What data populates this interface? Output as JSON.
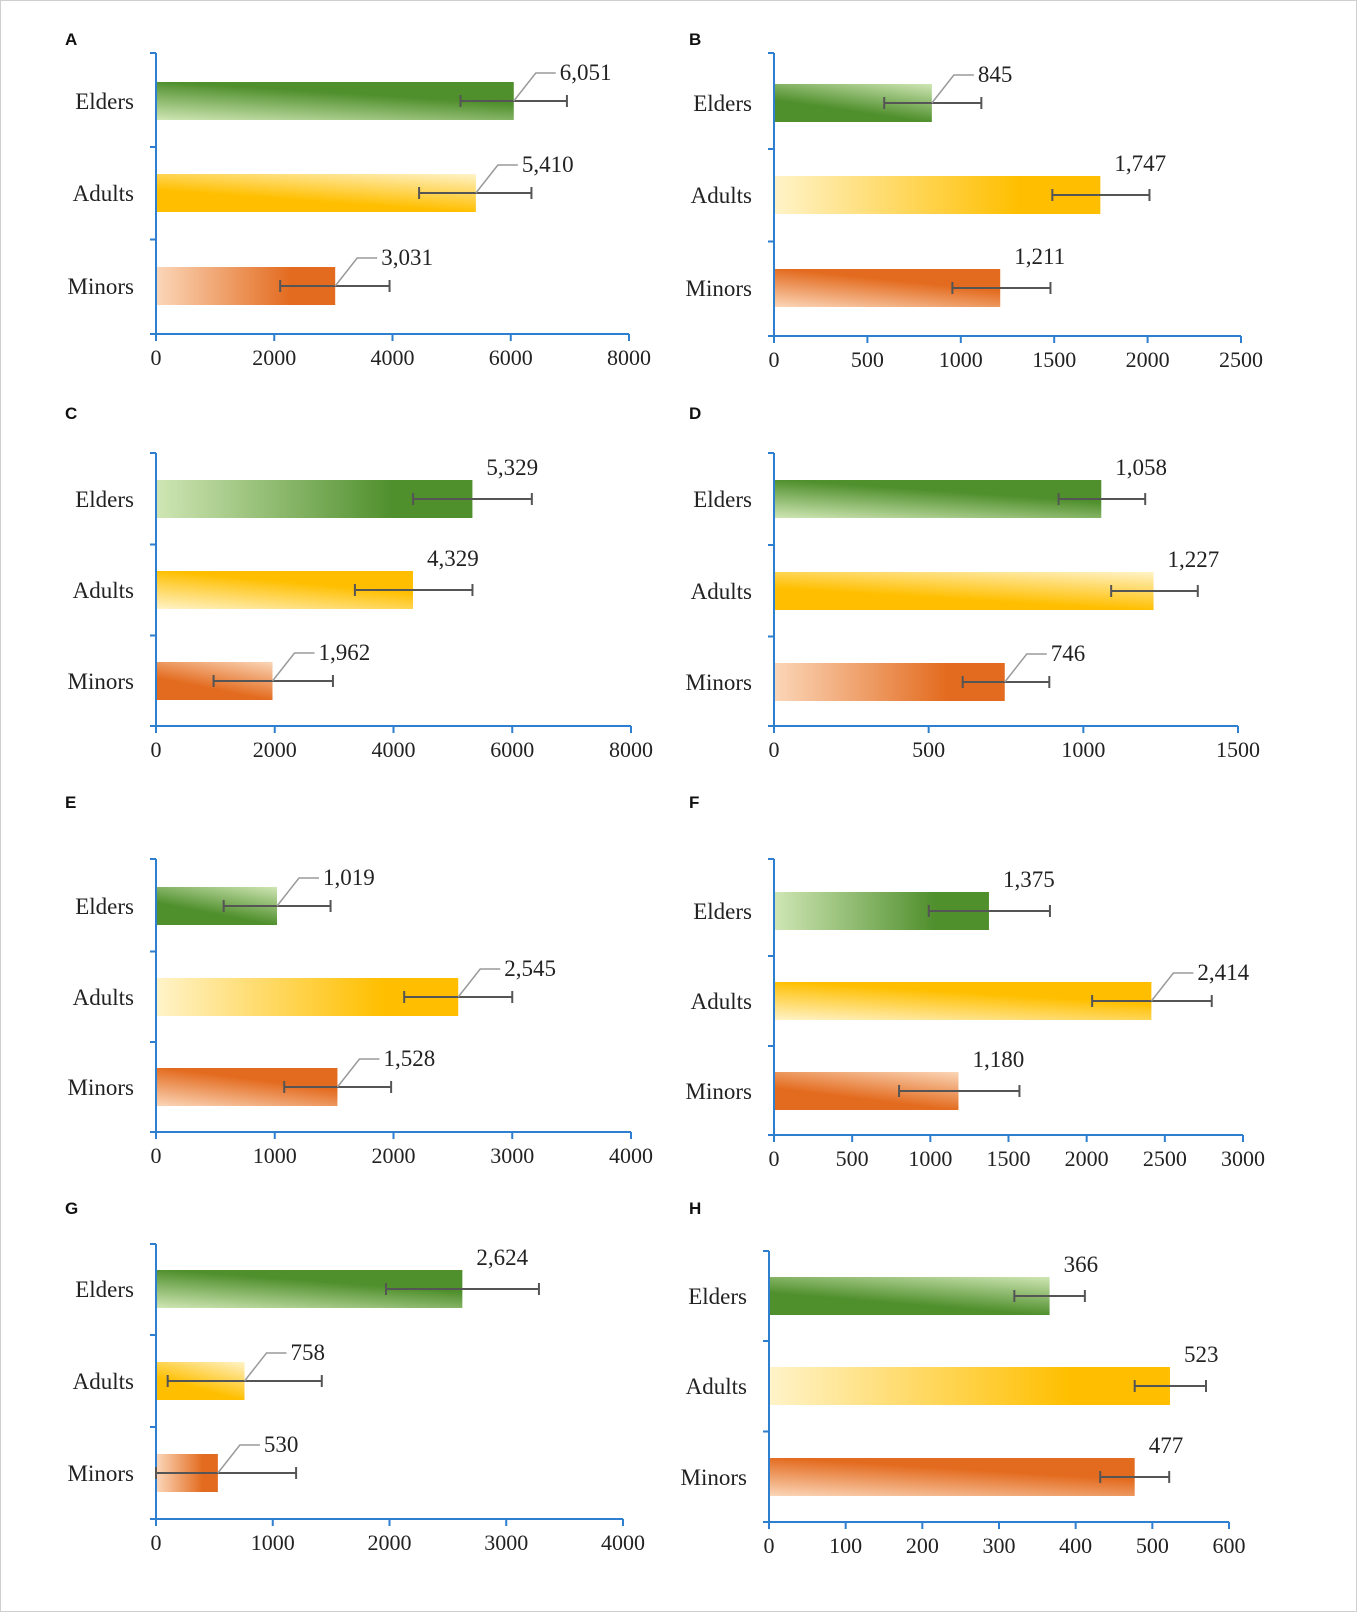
{
  "colors": {
    "axis": "#2e7fd0",
    "error_bar": "#555555",
    "leader": "#9a9a9a",
    "elders": [
      "#cfe6b4",
      "#4f8f2c"
    ],
    "adults": [
      "#fff3c8",
      "#ffbf00"
    ],
    "minors": [
      "#fbd6b8",
      "#e36b1f"
    ]
  },
  "chart_data": [
    {
      "panel": "A",
      "type": "bar",
      "orientation": "horizontal",
      "categories": [
        "Elders",
        "Adults",
        "Minors"
      ],
      "values": [
        6051,
        5410,
        3031
      ],
      "value_labels": [
        "6,051",
        "5,410",
        "3,031"
      ],
      "error": [
        [
          5150,
          6950
        ],
        [
          4450,
          6350
        ],
        [
          2100,
          3950
        ]
      ],
      "xlim": [
        0,
        8000
      ],
      "ticks": [
        "0",
        "2000",
        "4000",
        "6000",
        "8000"
      ],
      "grid": false,
      "legend": "none"
    },
    {
      "panel": "B",
      "type": "bar",
      "orientation": "horizontal",
      "categories": [
        "Elders",
        "Adults",
        "Minors"
      ],
      "values": [
        845,
        1747,
        1211
      ],
      "value_labels": [
        "845",
        "1,747",
        "1,211"
      ],
      "error": [
        [
          590,
          1110
        ],
        [
          1490,
          2010
        ],
        [
          955,
          1480
        ]
      ],
      "xlim": [
        0,
        2500
      ],
      "ticks": [
        "0",
        "500",
        "1000",
        "1500",
        "2000",
        "2500"
      ],
      "grid": false,
      "legend": "none"
    },
    {
      "panel": "C",
      "type": "bar",
      "orientation": "horizontal",
      "categories": [
        "Elders",
        "Adults",
        "Minors"
      ],
      "values": [
        5329,
        4329,
        1962
      ],
      "value_labels": [
        "5,329",
        "4,329",
        "1,962"
      ],
      "error": [
        [
          4330,
          6330
        ],
        [
          3350,
          5330
        ],
        [
          970,
          2980
        ]
      ],
      "xlim": [
        0,
        8000
      ],
      "ticks": [
        "0",
        "2000",
        "4000",
        "6000",
        "8000"
      ],
      "grid": false,
      "legend": "none"
    },
    {
      "panel": "D",
      "type": "bar",
      "orientation": "horizontal",
      "categories": [
        "Elders",
        "Adults",
        "Minors"
      ],
      "values": [
        1058,
        1227,
        746
      ],
      "value_labels": [
        "1,058",
        "1,227",
        "746"
      ],
      "error": [
        [
          920,
          1200
        ],
        [
          1090,
          1370
        ],
        [
          610,
          890
        ]
      ],
      "xlim": [
        0,
        1500
      ],
      "ticks": [
        "0",
        "500",
        "1000",
        "1500"
      ],
      "grid": false,
      "legend": "none"
    },
    {
      "panel": "E",
      "type": "bar",
      "orientation": "horizontal",
      "categories": [
        "Elders",
        "Adults",
        "Minors"
      ],
      "values": [
        1019,
        2545,
        1528
      ],
      "value_labels": [
        "1,019",
        "2,545",
        "1,528"
      ],
      "error": [
        [
          570,
          1470
        ],
        [
          2090,
          3000
        ],
        [
          1080,
          1980
        ]
      ],
      "xlim": [
        0,
        4000
      ],
      "ticks": [
        "0",
        "1000",
        "2000",
        "3000",
        "4000"
      ],
      "grid": false,
      "legend": "none"
    },
    {
      "panel": "F",
      "type": "bar",
      "orientation": "horizontal",
      "categories": [
        "Elders",
        "Adults",
        "Minors"
      ],
      "values": [
        1375,
        2414,
        1180
      ],
      "value_labels": [
        "1,375",
        "2,414",
        "1,180"
      ],
      "error": [
        [
          990,
          1765
        ],
        [
          2035,
          2800
        ],
        [
          800,
          1570
        ]
      ],
      "xlim": [
        0,
        3000
      ],
      "ticks": [
        "0",
        "500",
        "1000",
        "1500",
        "2000",
        "2500",
        "3000"
      ],
      "grid": false,
      "legend": "none"
    },
    {
      "panel": "G",
      "type": "bar",
      "orientation": "horizontal",
      "categories": [
        "Elders",
        "Adults",
        "Minors"
      ],
      "values": [
        2624,
        758,
        530
      ],
      "value_labels": [
        "2,624",
        "758",
        "530"
      ],
      "error": [
        [
          1970,
          3280
        ],
        [
          100,
          1420
        ],
        [
          0,
          1200
        ]
      ],
      "xlim": [
        0,
        4000
      ],
      "ticks": [
        "0",
        "1000",
        "2000",
        "3000",
        "4000"
      ],
      "grid": false,
      "legend": "none"
    },
    {
      "panel": "H",
      "type": "bar",
      "orientation": "horizontal",
      "categories": [
        "Elders",
        "Adults",
        "Minors"
      ],
      "values": [
        366,
        523,
        477
      ],
      "value_labels": [
        "366",
        "523",
        "477"
      ],
      "error": [
        [
          320,
          412
        ],
        [
          477,
          570
        ],
        [
          432,
          522
        ]
      ],
      "xlim": [
        0,
        600
      ],
      "ticks": [
        "0",
        "100",
        "200",
        "300",
        "400",
        "500",
        "600"
      ],
      "grid": false,
      "legend": "none"
    }
  ]
}
